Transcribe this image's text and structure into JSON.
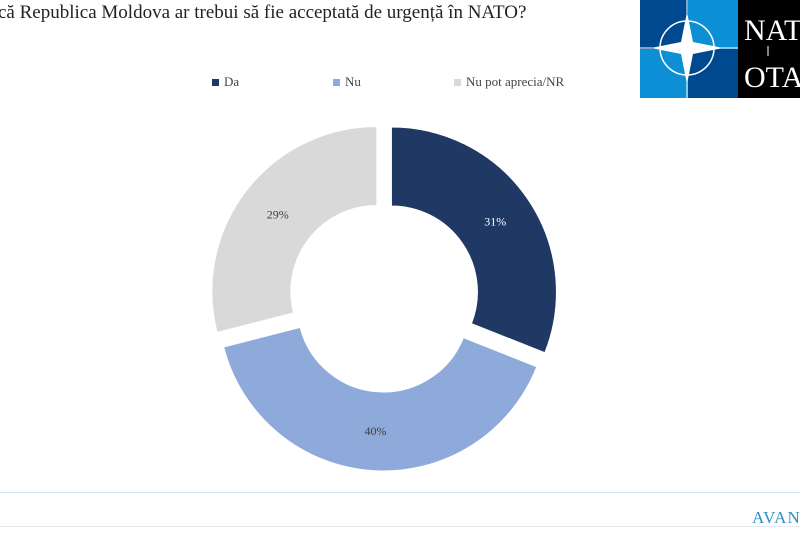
{
  "chart_data": {
    "type": "pie",
    "donut": true,
    "title": "că Republica Moldova ar trebui să fie acceptată de urgență în NATO?",
    "categories": [
      "Da",
      "Nu",
      "Nu pot aprecia/NR"
    ],
    "values": [
      31,
      40,
      29
    ],
    "data_labels": [
      "31%",
      "40%",
      "29%"
    ],
    "colors": [
      "#1f3864",
      "#8eaadb",
      "#d9d9d9"
    ],
    "legend_placement": "top"
  },
  "logo": {
    "line1": "NAT",
    "line2": "OTA",
    "colors": [
      "#004990",
      "#0d8fd6",
      "#000000"
    ]
  },
  "footer": {
    "brand": "AVAN"
  }
}
